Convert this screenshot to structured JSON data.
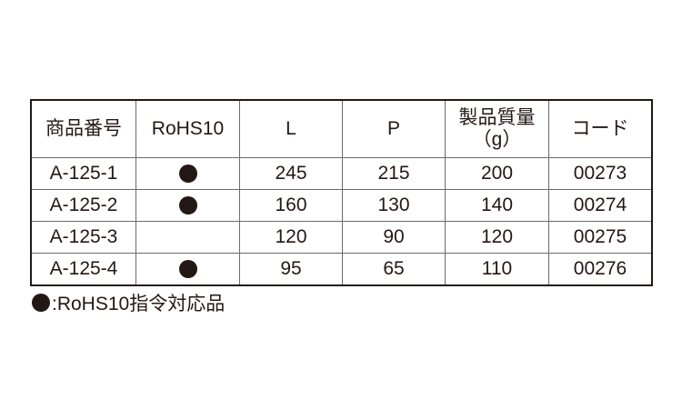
{
  "table": {
    "headers": [
      "商品番号",
      "RoHS10",
      "L",
      "P",
      "製品質量",
      "（g）",
      "コード"
    ],
    "rows": [
      {
        "part": "A-125-1",
        "rohs": true,
        "L": "245",
        "P": "215",
        "mass": "200",
        "code": "00273"
      },
      {
        "part": "A-125-2",
        "rohs": true,
        "L": "160",
        "P": "130",
        "mass": "140",
        "code": "00274"
      },
      {
        "part": "A-125-3",
        "rohs": false,
        "L": "120",
        "P": "90",
        "mass": "120",
        "code": "00275"
      },
      {
        "part": "A-125-4",
        "rohs": true,
        "L": "95",
        "P": "65",
        "mass": "110",
        "code": "00276"
      }
    ]
  },
  "legend": {
    "icon": "filled-circle",
    "text": ":RoHS10指令対応品"
  },
  "colors": {
    "text": "#231815"
  }
}
